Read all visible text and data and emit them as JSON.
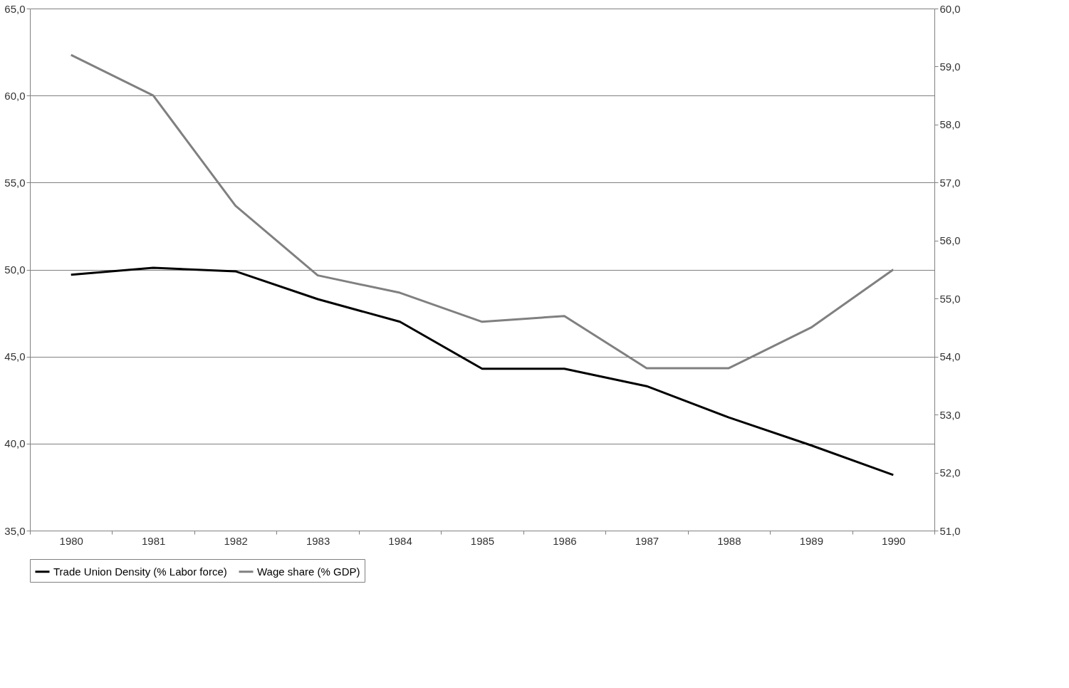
{
  "chart_data": {
    "type": "line",
    "categories": [
      "1980",
      "1981",
      "1982",
      "1983",
      "1984",
      "1985",
      "1986",
      "1987",
      "1988",
      "1989",
      "1990"
    ],
    "series": [
      {
        "name": "Trade Union Density (% Labor force)",
        "color": "#000000",
        "values": [
          49.7,
          50.1,
          49.9,
          48.3,
          47.0,
          44.3,
          44.3,
          43.3,
          41.5,
          39.9,
          38.2
        ]
      },
      {
        "name": "Wage share (% GDP)",
        "color": "#808080",
        "axis": "y2",
        "values": [
          59.2,
          58.5,
          56.6,
          55.4,
          55.1,
          54.6,
          54.7,
          53.8,
          53.8,
          54.5,
          55.5
        ]
      }
    ],
    "ylim": [
      35,
      65
    ],
    "yticks": [
      {
        "value": 35,
        "label": "35,0"
      },
      {
        "value": 40,
        "label": "40,0"
      },
      {
        "value": 45,
        "label": "45,0"
      },
      {
        "value": 50,
        "label": "50,0"
      },
      {
        "value": 55,
        "label": "55,0"
      },
      {
        "value": 60,
        "label": "60,0"
      },
      {
        "value": 65,
        "label": "65,0"
      }
    ],
    "y2lim": [
      51,
      60
    ],
    "y2ticks": [
      {
        "value": 51,
        "label": "51,0"
      },
      {
        "value": 52,
        "label": "52,0"
      },
      {
        "value": 53,
        "label": "53,0"
      },
      {
        "value": 54,
        "label": "54,0"
      },
      {
        "value": 55,
        "label": "55,0"
      },
      {
        "value": 56,
        "label": "56,0"
      },
      {
        "value": 57,
        "label": "57,0"
      },
      {
        "value": 58,
        "label": "58,0"
      },
      {
        "value": 59,
        "label": "59,0"
      },
      {
        "value": 60,
        "label": "60,0"
      }
    ],
    "grid": "y",
    "legend": "bottom",
    "marker": "none",
    "line_style": "solid"
  }
}
